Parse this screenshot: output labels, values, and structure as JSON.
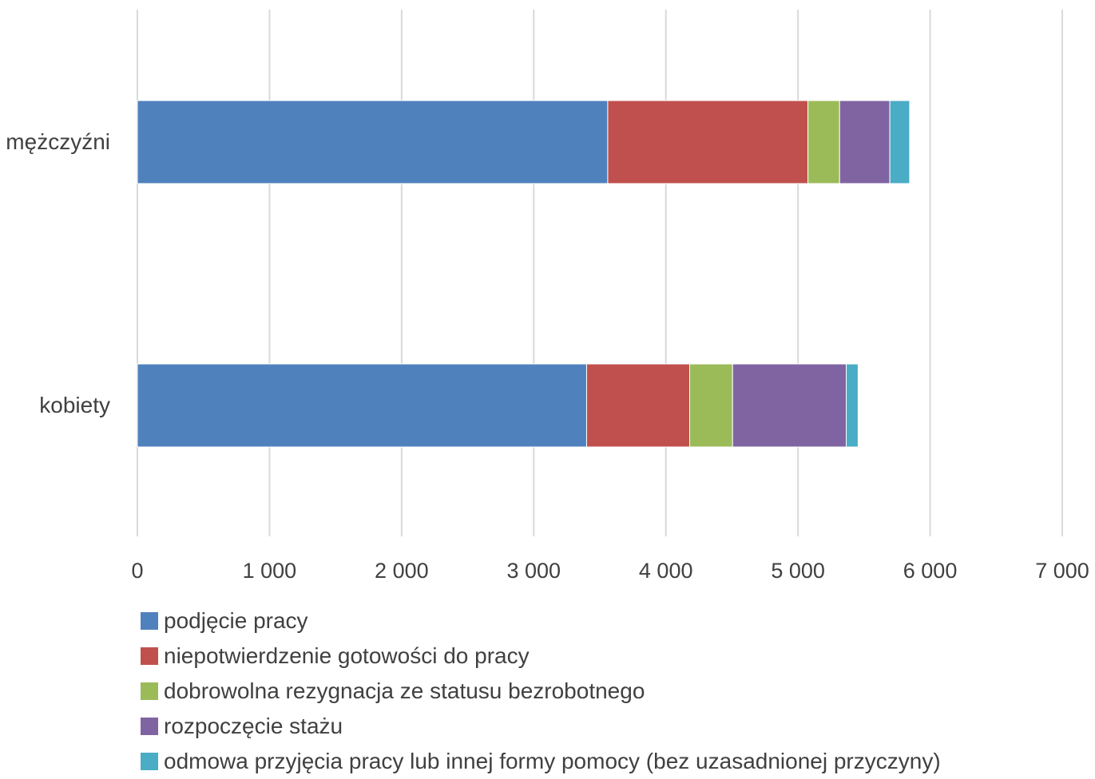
{
  "chart_data": {
    "type": "bar",
    "orientation": "horizontal",
    "stacked": true,
    "categories": [
      "mężczyźni",
      "kobiety"
    ],
    "series": [
      {
        "name": "podjęcie pracy",
        "color": "#4F81BD",
        "values": [
          3560,
          3400
        ]
      },
      {
        "name": "niepotwierdzenie gotowości do pracy",
        "color": "#C0504D",
        "values": [
          1515,
          780
        ]
      },
      {
        "name": "dobrowolna rezygnacja ze statusu bezrobotnego",
        "color": "#9BBB59",
        "values": [
          240,
          325
        ]
      },
      {
        "name": "rozpoczęcie stażu",
        "color": "#8064A2",
        "values": [
          380,
          860
        ]
      },
      {
        "name": "odmowa przyjęcia pracy lub innej formy pomocy (bez uzasadnionej przyczyny)",
        "color": "#4BACC6",
        "values": [
          150,
          90
        ]
      }
    ],
    "xlim": [
      0,
      7000
    ],
    "xticks": [
      0,
      1000,
      2000,
      3000,
      4000,
      5000,
      6000,
      7000
    ],
    "xtick_labels": [
      "0",
      "1 000",
      "2 000",
      "3 000",
      "4 000",
      "5 000",
      "6 000",
      "7 000"
    ],
    "grid": true,
    "legend_position": "bottom"
  }
}
